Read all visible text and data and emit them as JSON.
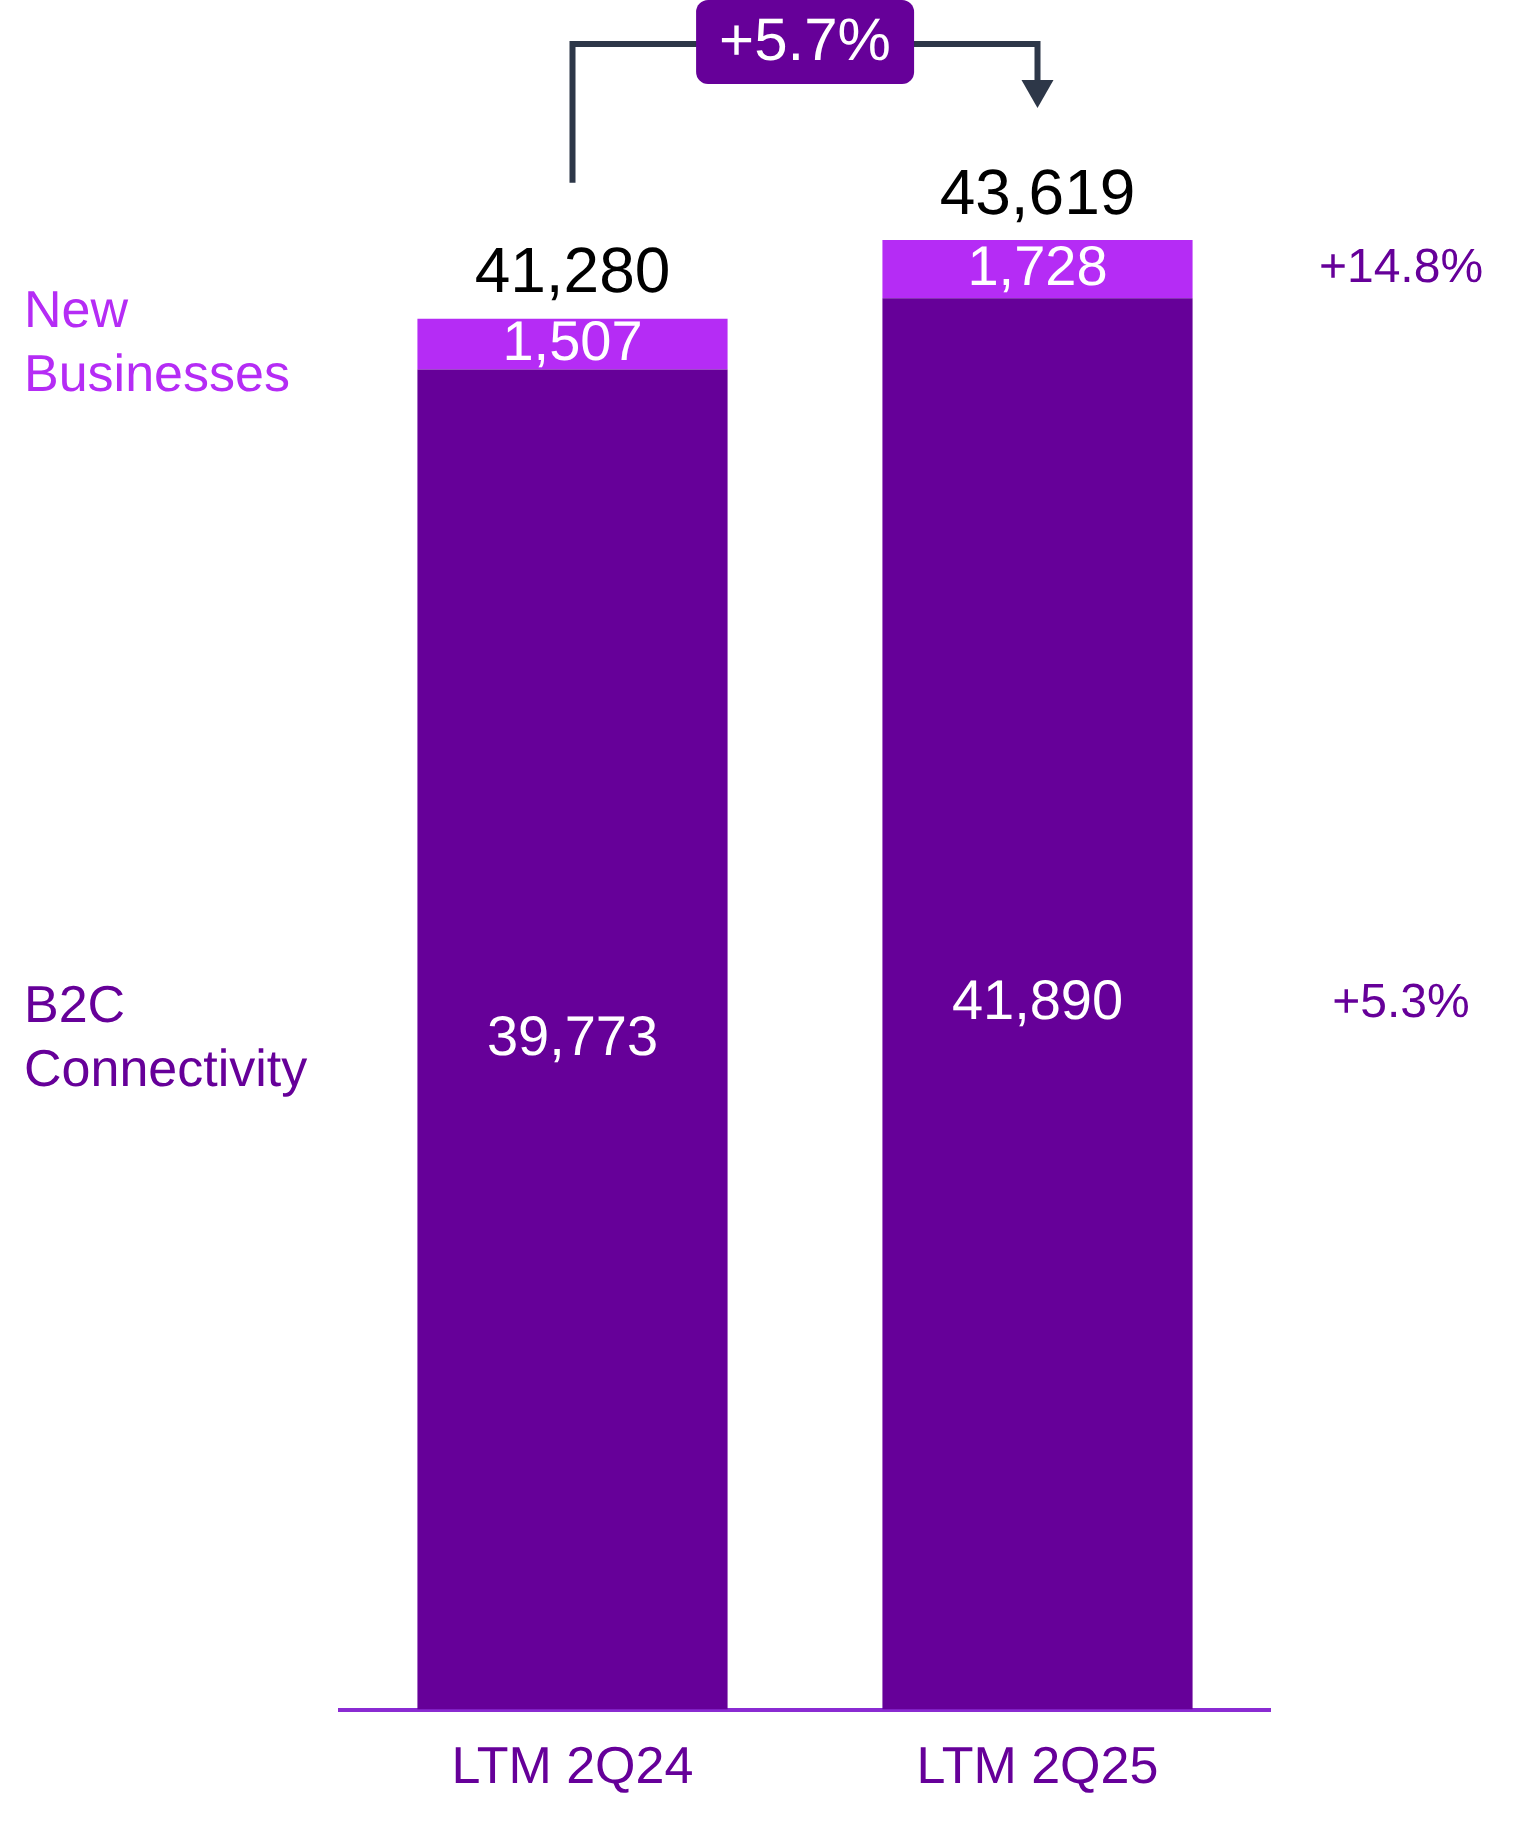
{
  "chart_data": {
    "type": "bar",
    "stacked": true,
    "categories": [
      "LTM 2Q24",
      "LTM 2Q25"
    ],
    "series": [
      {
        "name": "B2C Connectivity",
        "color": "#660099",
        "values": [
          39773,
          41890
        ],
        "value_labels": [
          "39,773",
          "41,890"
        ]
      },
      {
        "name": "New Businesses",
        "color": "#b52cf5",
        "values": [
          1507,
          1728
        ],
        "value_labels": [
          "1,507",
          "1,728"
        ]
      }
    ],
    "totals": [
      "41,280",
      "43,619"
    ],
    "annotations": [
      "+5.3%",
      "+14.8%",
      "+5.7%"
    ],
    "legend": false,
    "grid": false
  }
}
